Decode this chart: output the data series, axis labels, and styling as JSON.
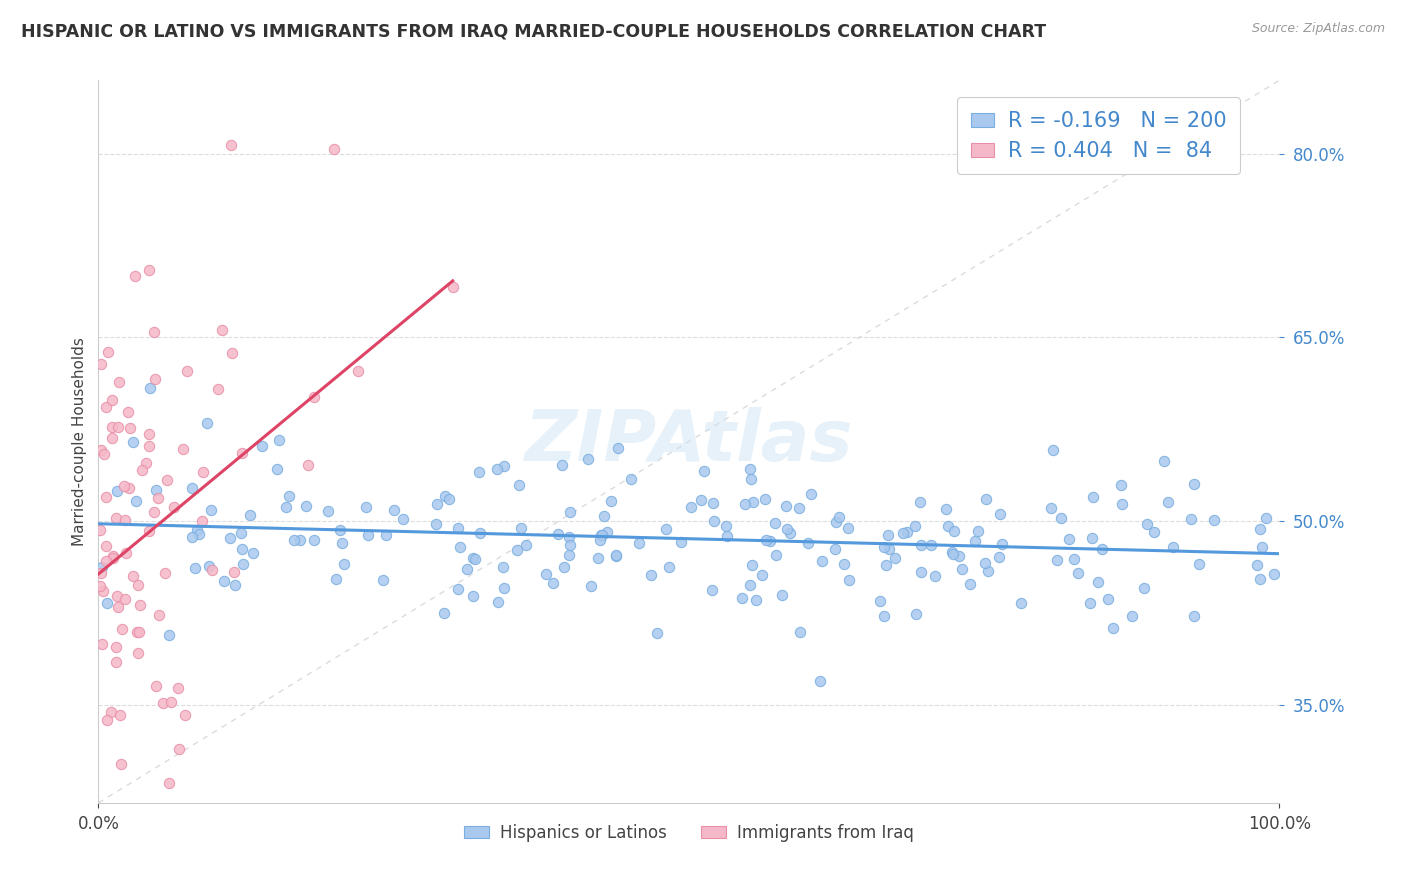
{
  "title": "HISPANIC OR LATINO VS IMMIGRANTS FROM IRAQ MARRIED-COUPLE HOUSEHOLDS CORRELATION CHART",
  "source": "Source: ZipAtlas.com",
  "ylabel": "Married-couple Households",
  "xlim": [
    0,
    1
  ],
  "ylim": [
    0.27,
    0.86
  ],
  "yticks": [
    0.35,
    0.5,
    0.65,
    0.8
  ],
  "xticks": [
    0.0,
    1.0
  ],
  "blue_R": -0.169,
  "blue_N": 200,
  "pink_R": 0.404,
  "pink_N": 84,
  "blue_dot_color": "#A8C8EE",
  "blue_dot_edge": "#7AAEE0",
  "pink_dot_color": "#F5B8C8",
  "pink_dot_edge": "#E890A8",
  "blue_line_color": "#5599DD",
  "pink_line_color": "#DD4466",
  "ref_line_color": "#CCCCCC",
  "legend_label_blue": "Hispanics or Latinos",
  "legend_label_pink": "Immigrants from Iraq",
  "watermark": "ZIPAtlas",
  "background_color": "#FFFFFF",
  "grid_color": "#DDDDDD",
  "text_color_blue": "#4488CC",
  "text_color_dark": "#444444",
  "title_color": "#333333"
}
